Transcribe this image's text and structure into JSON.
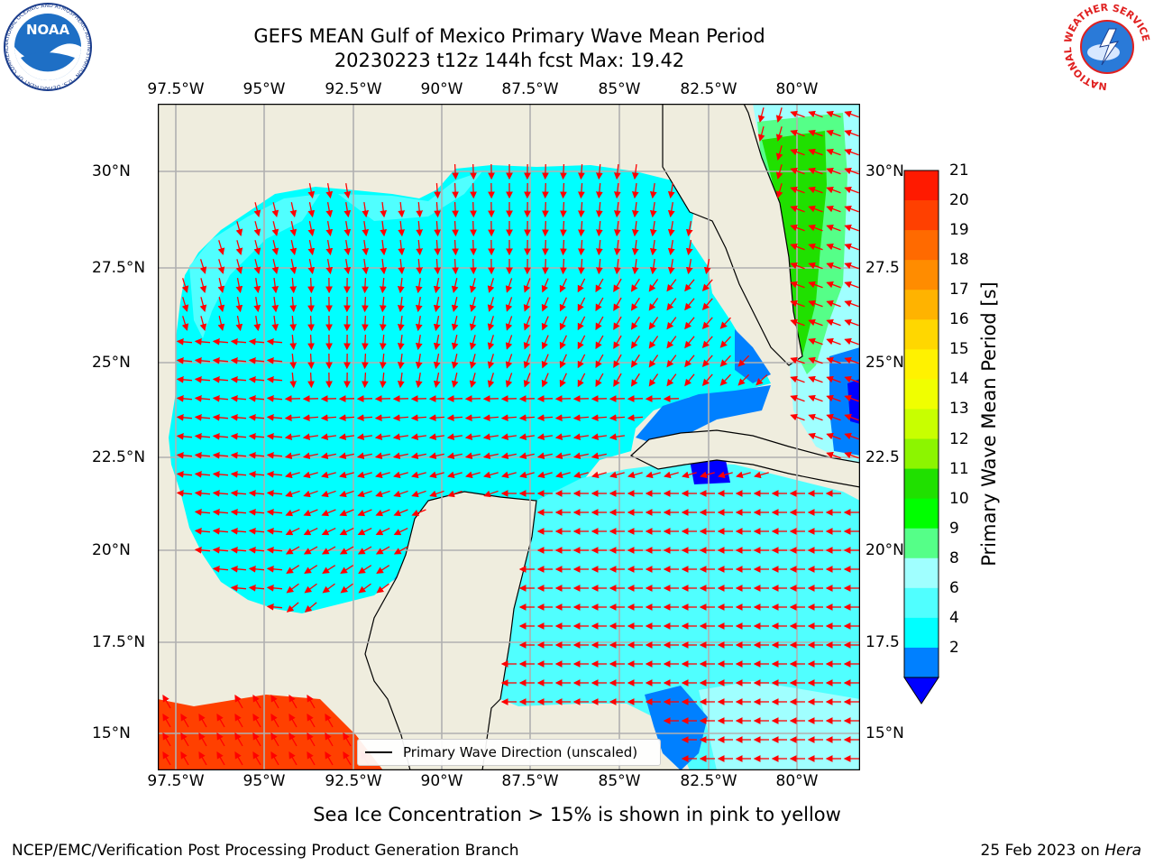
{
  "title": {
    "line1": "GEFS MEAN Gulf of Mexico Primary Wave Mean Period",
    "line2": "20230223 t12z 144h fcst   Max: 19.42"
  },
  "logos": {
    "noaa_text": "NOAA",
    "noaa_ring": "NATIONAL OCEANIC AND ATMOSPHERIC ADMINISTRATION · U.S. DEPARTMENT OF COMMERCE",
    "nws_ring": "NATIONAL WEATHER SERVICE"
  },
  "axes": {
    "lon_ticks": [
      "97.5°W",
      "95°W",
      "92.5°W",
      "90°W",
      "87.5°W",
      "85°W",
      "82.5°W",
      "80°W"
    ],
    "lat_ticks_left": [
      "30°N",
      "27.5°N",
      "25°N",
      "22.5°N",
      "20°N",
      "17.5°N",
      "15°N"
    ],
    "lat_ticks_right": [
      "30°N",
      "27.5",
      "25°N",
      "22.5",
      "20°N",
      "17.5",
      "15°N"
    ]
  },
  "colorbar": {
    "label": "Primary Wave Mean Period [s]",
    "ticks": [
      "21",
      "20",
      "19",
      "18",
      "17",
      "16",
      "15",
      "14",
      "13",
      "12",
      "11",
      "10",
      "9",
      "8",
      "6",
      "4",
      "2"
    ],
    "colors": [
      "#ff1a00",
      "#ff4000",
      "#ff6a00",
      "#ff8c00",
      "#ffb300",
      "#ffd700",
      "#fff200",
      "#f0ff00",
      "#c8ff00",
      "#8cf500",
      "#20e000",
      "#00ff00",
      "#55ff88",
      "#a0ffff",
      "#50ffff",
      "#00ffff",
      "#0080ff"
    ],
    "extend_color": "#0000ff"
  },
  "legend": {
    "label": "Primary Wave Direction (unscaled)"
  },
  "note": "Sea Ice Concentration > 15% is shown in pink to yellow",
  "footer": {
    "left": "NCEP/EMC/Verification Post Processing Product Generation Branch",
    "right_prefix": "25 Feb 2023 on ",
    "right_machine": "Hera"
  },
  "map_colors": {
    "land": "#efedde",
    "grid": "#b0b0b0",
    "arrow": "#ff0000",
    "coast": "#000000"
  }
}
